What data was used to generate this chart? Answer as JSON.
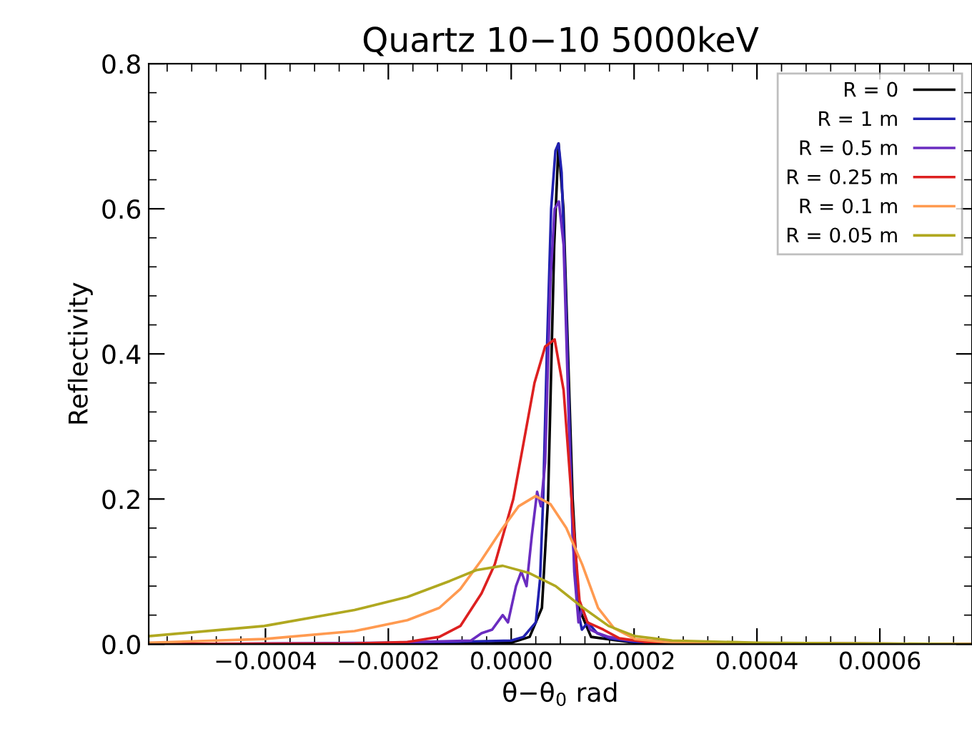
{
  "chart_data": {
    "type": "line",
    "title": "Quartz 10−10 5000keV",
    "xlabel": "θ−θ$_{0}$ rad",
    "ylabel": "Reflectivity",
    "xlim": [
      -0.00059,
      0.00075
    ],
    "ylim": [
      0,
      0.8
    ],
    "xticks": [
      {
        "value": -0.0004,
        "label": "−0.0004"
      },
      {
        "value": -0.0002,
        "label": "−0.0002"
      },
      {
        "value": 0,
        "label": "0.0000"
      },
      {
        "value": 0.0002,
        "label": "0.0002"
      },
      {
        "value": 0.0004,
        "label": "0.0004"
      },
      {
        "value": 0.0006,
        "label": "0.0006"
      }
    ],
    "yticks": [
      {
        "value": 0,
        "label": "0.0"
      },
      {
        "value": 0.2,
        "label": "0.2"
      },
      {
        "value": 0.4,
        "label": "0.4"
      },
      {
        "value": 0.6,
        "label": "0.6"
      },
      {
        "value": 0.8,
        "label": "0.8"
      }
    ],
    "grid": false,
    "legend": "top right",
    "marker": "none",
    "line_style": "solid",
    "series": [
      {
        "name": "R = 0",
        "color": "#000000",
        "x": [
          -0.00059,
          -0.0004,
          -0.0001,
          0,
          3e-05,
          5e-05,
          6e-05,
          7e-05,
          7.7e-05,
          8.5e-05,
          0.0001,
          0.00011,
          0.00013,
          0.0002,
          0.00075
        ],
        "values": [
          0,
          0,
          0,
          0.002,
          0.01,
          0.05,
          0.2,
          0.55,
          0.69,
          0.6,
          0.2,
          0.05,
          0.01,
          0.002,
          0
        ]
      },
      {
        "name": "R = 1 m",
        "color": "#2020b0",
        "x": [
          -0.00059,
          -0.0002,
          -0.0001,
          0,
          2e-05,
          4e-05,
          4.7e-05,
          5.2e-05,
          5.8e-05,
          6.5e-05,
          7.2e-05,
          7.7e-05,
          8.2e-05,
          8.8e-05,
          9.5e-05,
          0.0001,
          0.000108,
          0.000115,
          0.000125,
          0.00014,
          0.00016,
          0.0002,
          0.0004,
          0.00075
        ],
        "values": [
          0,
          0.001,
          0.003,
          0.005,
          0.01,
          0.03,
          0.09,
          0.2,
          0.4,
          0.6,
          0.68,
          0.69,
          0.65,
          0.5,
          0.3,
          0.15,
          0.05,
          0.02,
          0.03,
          0.015,
          0.008,
          0.003,
          0.001,
          0
        ]
      },
      {
        "name": "R = 0.5 m",
        "color": "#6a2cc0",
        "x": [
          -0.00059,
          -0.0002,
          -6.55e-05,
          -4.83e-05,
          -3.1e-05,
          -1.38e-05,
          -5.2e-06,
          7.8e-06,
          1.64e-05,
          2.5e-05,
          3.36e-05,
          4.22e-05,
          4.83e-05,
          5.52e-05,
          6.38e-05,
          7.07e-05,
          7.76e-05,
          8.53e-05,
          9.4e-05,
          0.0001026,
          0.0001095,
          0.0001155,
          0.0001284,
          0.0001414,
          0.0001586,
          0.0001931,
          0.0004,
          0.00075
        ],
        "values": [
          0,
          0.002,
          0.005,
          0.015,
          0.02,
          0.04,
          0.03,
          0.08,
          0.1,
          0.08,
          0.15,
          0.21,
          0.19,
          0.25,
          0.5,
          0.6,
          0.61,
          0.55,
          0.3,
          0.1,
          0.03,
          0.05,
          0.02,
          0.015,
          0.01,
          0.005,
          0.001,
          0
        ]
      },
      {
        "name": "R = 0.25 m",
        "color": "#dd2020",
        "x": [
          -0.00059,
          -0.000255,
          -0.000169,
          -0.000117,
          -8.28e-05,
          -4.83e-05,
          -2.67e-05,
          3.4e-06,
          2.07e-05,
          3.79e-05,
          5.52e-05,
          7.07e-05,
          8.53e-05,
          9.4e-05,
          0.0001026,
          0.0001112,
          0.0001241,
          0.00015,
          0.000176,
          0.000219,
          0.0004,
          0.00075
        ],
        "values": [
          0,
          0.001,
          0.003,
          0.01,
          0.025,
          0.07,
          0.11,
          0.2,
          0.28,
          0.36,
          0.41,
          0.42,
          0.35,
          0.25,
          0.15,
          0.06,
          0.03,
          0.02,
          0.008,
          0.003,
          0.001,
          0
        ]
      },
      {
        "name": "R = 0.1 m",
        "color": "#ff9a50",
        "x": [
          -0.00059,
          -0.000402,
          -0.000255,
          -0.000169,
          -0.000117,
          -8.28e-05,
          -4.83e-05,
          -1.38e-05,
          1.21e-05,
          3.97e-05,
          6.38e-05,
          8.97e-05,
          0.0001155,
          0.0001414,
          0.0001672,
          0.0002017,
          0.000262,
          0.00075
        ],
        "values": [
          0.002,
          0.007,
          0.018,
          0.033,
          0.05,
          0.076,
          0.116,
          0.16,
          0.19,
          0.204,
          0.193,
          0.16,
          0.11,
          0.05,
          0.022,
          0.007,
          0.002,
          0
        ]
      },
      {
        "name": "R = 0.05 m",
        "color": "#b0a820",
        "x": [
          -0.00059,
          -0.000402,
          -0.000255,
          -0.000169,
          -0.0001,
          -5.69e-05,
          -1.38e-05,
          2.93e-05,
          7.24e-05,
          0.0001155,
          0.0001586,
          0.0002017,
          0.000262,
          0.0004,
          0.00075
        ],
        "values": [
          0.011,
          0.025,
          0.047,
          0.065,
          0.087,
          0.102,
          0.108,
          0.098,
          0.08,
          0.051,
          0.025,
          0.011,
          0.005,
          0.002,
          0
        ]
      }
    ]
  }
}
